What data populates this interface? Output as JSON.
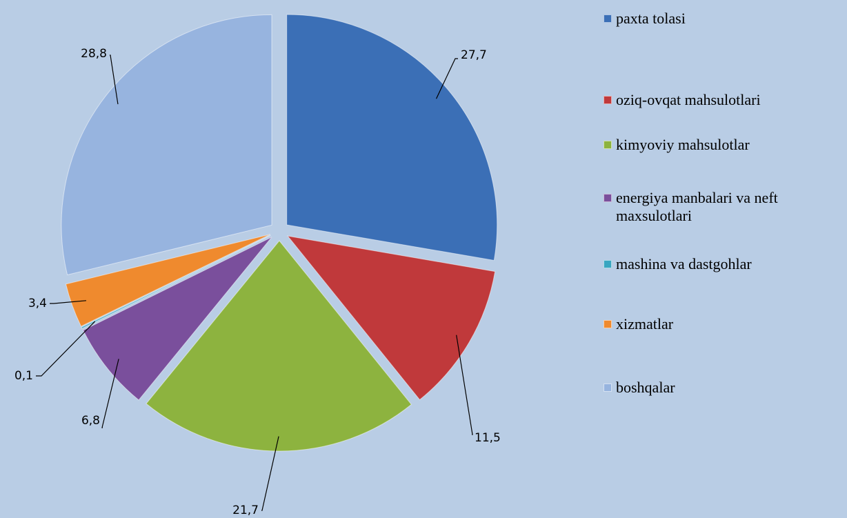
{
  "chart_data": {
    "type": "pie",
    "categories": [
      "paxta tolasi",
      "oziq-ovqat mahsulotlari",
      "kimyoviy mahsulotlar",
      "energiya manbalari va neft maxsulotlari",
      "mashina va dastgohlar",
      "xizmatlar",
      "boshqalar"
    ],
    "values": [
      27.7,
      11.5,
      21.7,
      6.8,
      0.1,
      3.4,
      28.8
    ],
    "value_labels": [
      "27,7",
      "11,5",
      "21,7",
      "6,8",
      "0,1",
      "3,4",
      "28,8"
    ],
    "colors": [
      "#3b6fb6",
      "#c0393b",
      "#8db33f",
      "#7a4f9c",
      "#39a6c1",
      "#ef8a2e",
      "#97b4df"
    ],
    "legend": "right"
  }
}
